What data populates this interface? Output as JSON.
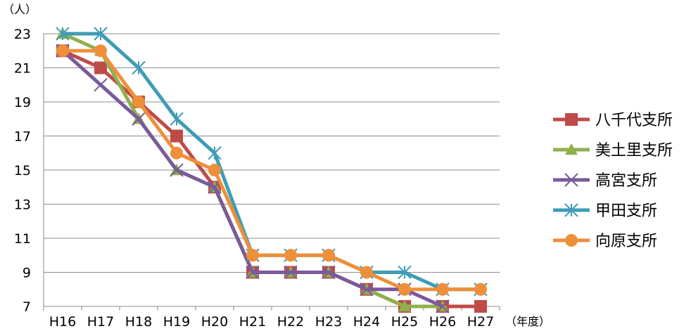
{
  "chart_data": {
    "type": "line",
    "ylabel": "（人）",
    "xlabel": "（年度）",
    "categories": [
      "H16",
      "H17",
      "H18",
      "H19",
      "H20",
      "H21",
      "H22",
      "H23",
      "H24",
      "H25",
      "H26",
      "H27"
    ],
    "ylim": [
      7,
      23
    ],
    "yticks": [
      7,
      9,
      11,
      13,
      15,
      17,
      19,
      21,
      23
    ],
    "grid": true,
    "legend_position": "right",
    "series": [
      {
        "name": "八千代支所",
        "color": "#be4b48",
        "marker": "square",
        "values": [
          22,
          21,
          19,
          17,
          14,
          9,
          9,
          9,
          8,
          7,
          7,
          7
        ]
      },
      {
        "name": "美土里支所",
        "color": "#8fb04c",
        "marker": "triangle",
        "values": [
          23,
          22,
          18,
          15,
          14,
          9,
          9,
          9,
          8,
          7,
          7,
          null
        ]
      },
      {
        "name": "高宮支所",
        "color": "#7a5a9a",
        "marker": "x",
        "values": [
          22,
          20,
          18,
          15,
          14,
          9,
          9,
          9,
          8,
          8,
          7,
          null
        ]
      },
      {
        "name": "甲田支所",
        "color": "#3e9db5",
        "marker": "star",
        "values": [
          23,
          23,
          21,
          18,
          16,
          10,
          10,
          10,
          9,
          9,
          8,
          8
        ]
      },
      {
        "name": "向原支所",
        "color": "#ee8f3a",
        "marker": "circle",
        "values": [
          22,
          22,
          19,
          16,
          15,
          10,
          10,
          10,
          9,
          8,
          8,
          8
        ]
      }
    ]
  }
}
